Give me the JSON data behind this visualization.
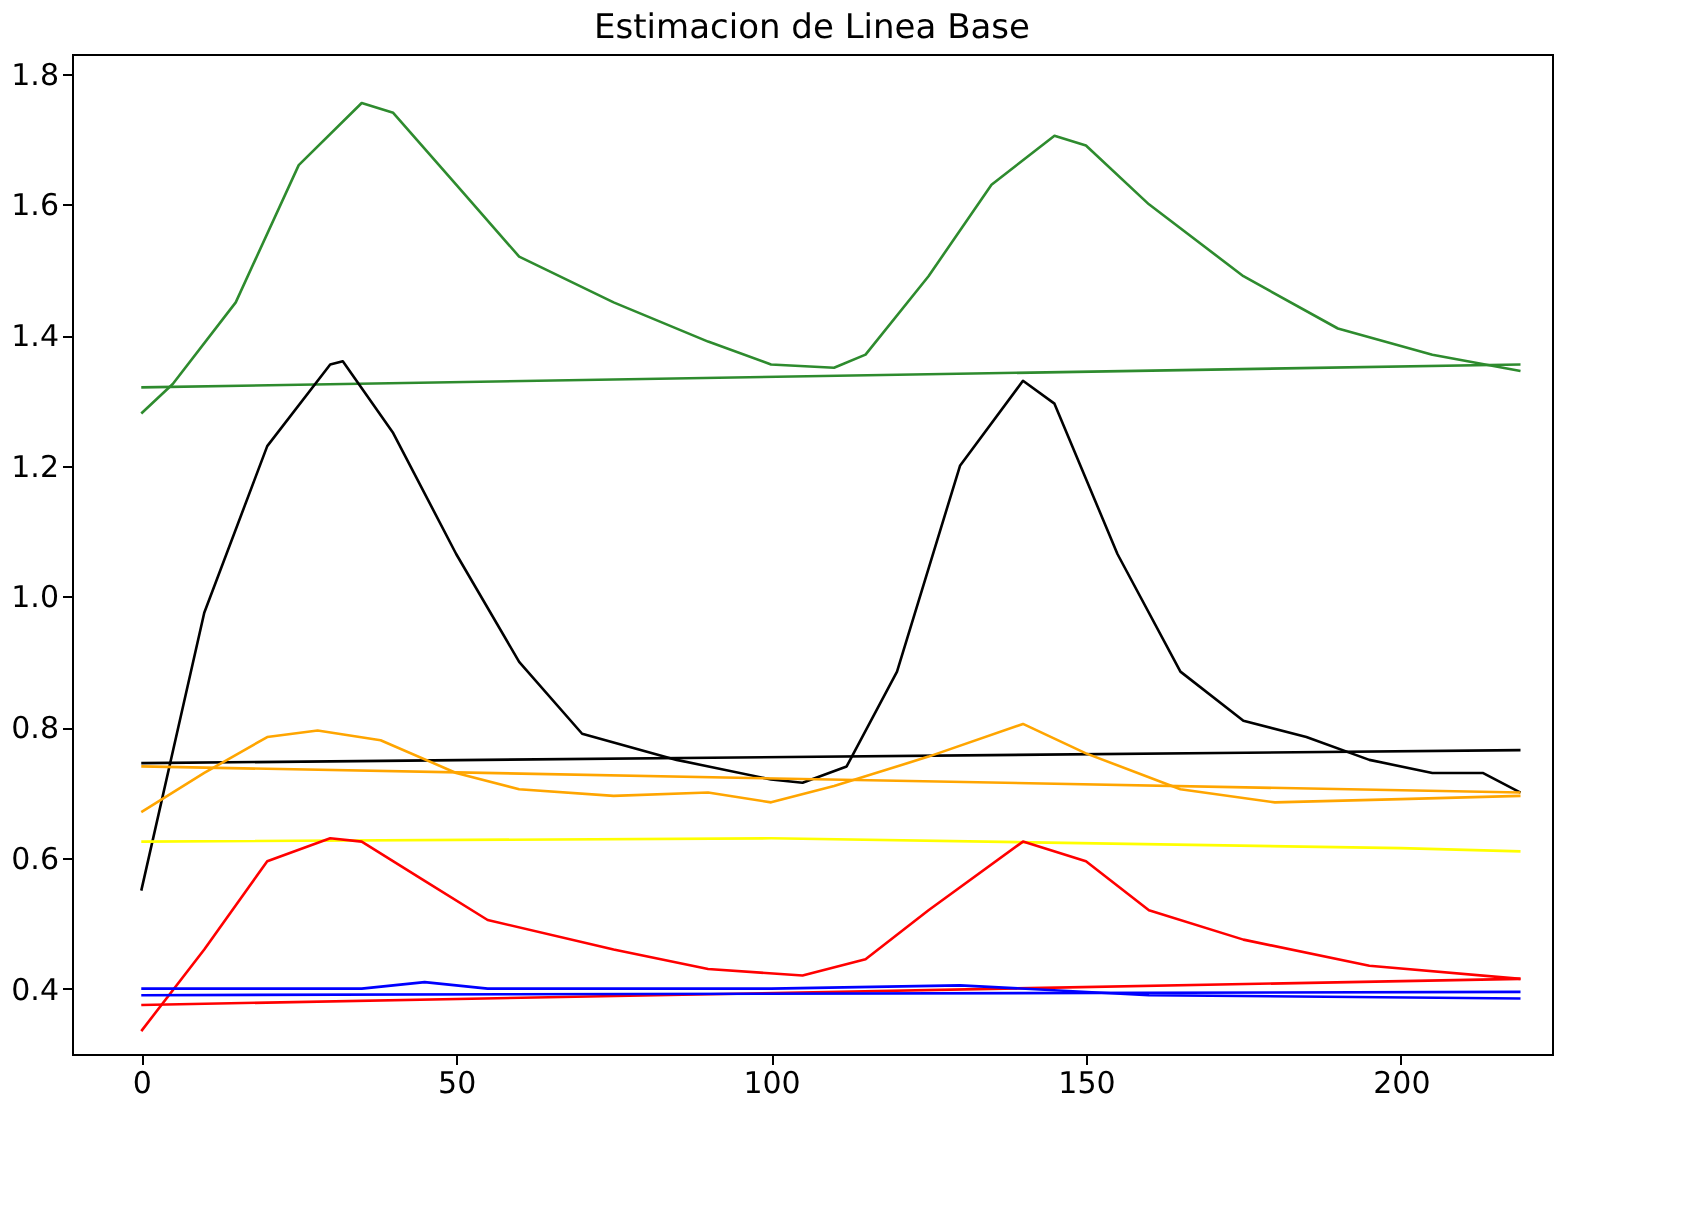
{
  "chart_data": {
    "type": "line",
    "title": "Estimacion de Linea Base",
    "xlim": [
      -11,
      224
    ],
    "ylim": [
      0.3,
      1.83
    ],
    "xticks": [
      0,
      50,
      100,
      150,
      200
    ],
    "yticks": [
      0.4,
      0.6,
      0.8,
      {
        "value": 1,
        "label": "1.0"
      },
      1.2,
      1.4,
      1.6,
      1.8
    ],
    "grid": false,
    "line_style": "solid",
    "marker": "none",
    "series": [
      {
        "color": "#2e8b2e",
        "x": [
          0,
          5,
          15,
          25,
          35,
          40,
          50,
          60,
          75,
          90,
          100,
          110,
          115,
          125,
          135,
          145,
          150,
          160,
          175,
          190,
          205,
          219
        ],
        "values": [
          1.28,
          1.325,
          1.45,
          1.66,
          1.755,
          1.74,
          1.63,
          1.52,
          1.45,
          1.39,
          1.355,
          1.35,
          1.37,
          1.49,
          1.63,
          1.705,
          1.69,
          1.6,
          1.49,
          1.41,
          1.37,
          1.345
        ]
      },
      {
        "color": "#2e8b2e",
        "x": [
          0,
          219
        ],
        "values": [
          1.32,
          1.355
        ]
      },
      {
        "color": "#000000",
        "x": [
          0,
          10,
          20,
          30,
          32,
          40,
          50,
          60,
          70,
          85,
          100,
          105,
          112,
          120,
          130,
          140,
          145,
          155,
          165,
          175,
          185,
          195,
          205,
          213,
          219
        ],
        "values": [
          0.55,
          0.975,
          1.23,
          1.355,
          1.36,
          1.25,
          1.065,
          0.9,
          0.79,
          0.75,
          0.72,
          0.715,
          0.74,
          0.885,
          1.2,
          1.33,
          1.295,
          1.065,
          0.885,
          0.81,
          0.785,
          0.75,
          0.73,
          0.73,
          0.7
        ]
      },
      {
        "color": "#000000",
        "x": [
          0,
          219
        ],
        "values": [
          0.745,
          0.765
        ]
      },
      {
        "color": "#ffa500",
        "x": [
          0,
          10,
          20,
          28,
          38,
          50,
          60,
          75,
          90,
          100,
          110,
          125,
          140,
          150,
          165,
          180,
          200,
          219
        ],
        "values": [
          0.67,
          0.73,
          0.785,
          0.795,
          0.78,
          0.73,
          0.705,
          0.695,
          0.7,
          0.685,
          0.71,
          0.755,
          0.805,
          0.76,
          0.705,
          0.685,
          0.69,
          0.695
        ]
      },
      {
        "color": "#ffa500",
        "x": [
          0,
          219
        ],
        "values": [
          0.74,
          0.7
        ]
      },
      {
        "color": "#ffff00",
        "x": [
          0,
          100,
          200,
          219
        ],
        "values": [
          0.625,
          0.63,
          0.615,
          0.61
        ]
      },
      {
        "color": "#ff0000",
        "x": [
          0,
          10,
          20,
          30,
          35,
          45,
          55,
          75,
          90,
          105,
          115,
          125,
          140,
          150,
          160,
          175,
          195,
          219
        ],
        "values": [
          0.335,
          0.46,
          0.595,
          0.63,
          0.625,
          0.565,
          0.505,
          0.46,
          0.43,
          0.42,
          0.445,
          0.52,
          0.625,
          0.595,
          0.52,
          0.475,
          0.435,
          0.415
        ]
      },
      {
        "color": "#ff0000",
        "x": [
          0,
          219
        ],
        "values": [
          0.375,
          0.415
        ]
      },
      {
        "color": "#0000ff",
        "x": [
          0,
          35,
          45,
          55,
          100,
          130,
          160,
          219
        ],
        "values": [
          0.4,
          0.4,
          0.41,
          0.4,
          0.4,
          0.405,
          0.39,
          0.385
        ]
      },
      {
        "color": "#0000ff",
        "x": [
          0,
          219
        ],
        "values": [
          0.39,
          0.395
        ]
      }
    ]
  }
}
